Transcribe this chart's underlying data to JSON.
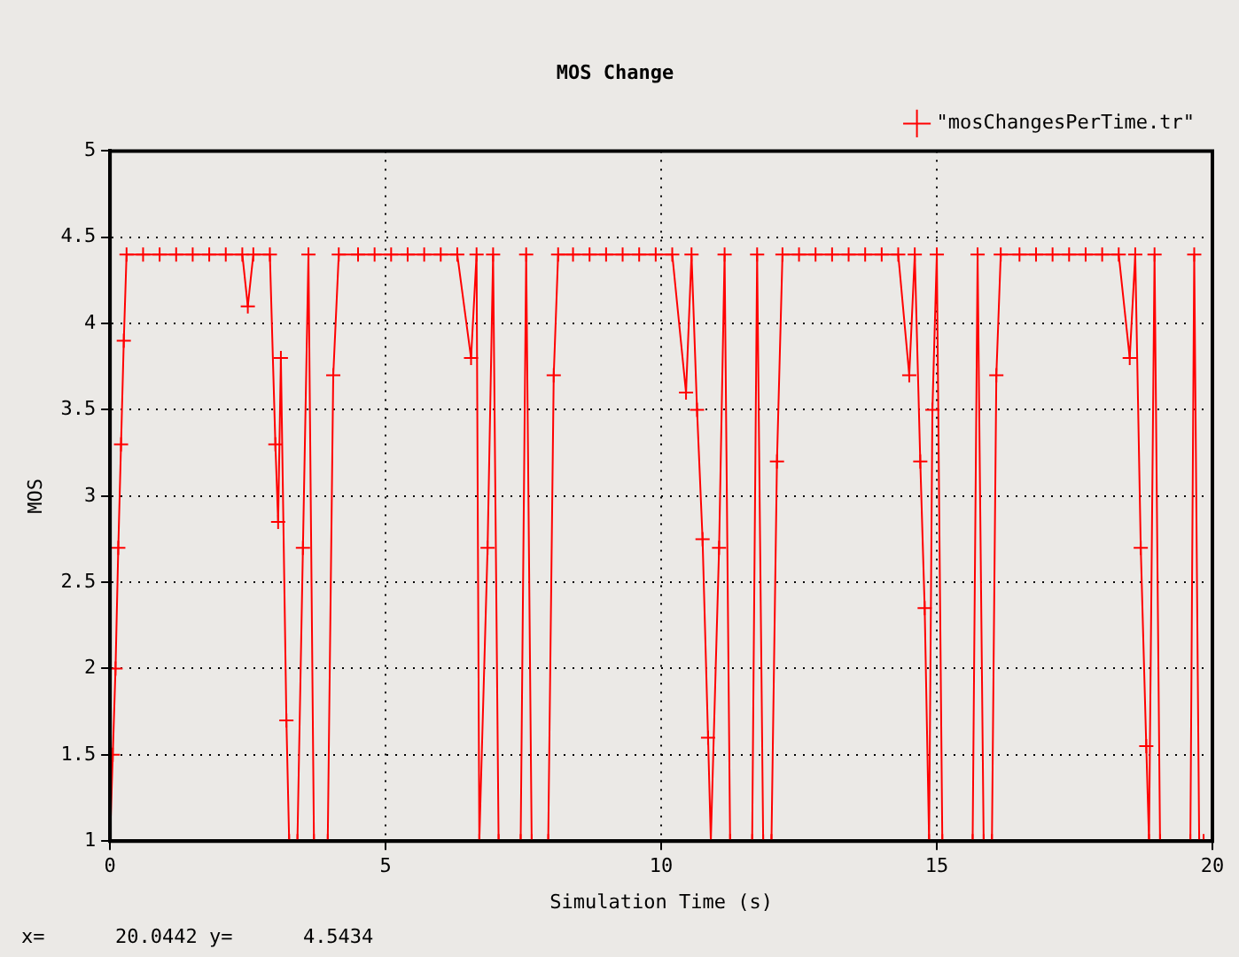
{
  "chart_data": {
    "type": "line",
    "title": "MOS Change",
    "xlabel": "Simulation Time (s)",
    "ylabel": "MOS",
    "x": [
      0,
      0.05,
      0.1,
      0.15,
      0.2,
      0.25,
      0.3,
      0.6,
      0.9,
      1.2,
      1.5,
      1.8,
      2.1,
      2.4,
      2.5,
      2.6,
      2.9,
      3.0,
      3.05,
      3.1,
      3.2,
      3.25,
      3.4,
      3.5,
      3.6,
      3.7,
      3.95,
      4.05,
      4.15,
      4.5,
      4.8,
      5.1,
      5.4,
      5.7,
      6.0,
      6.3,
      6.55,
      6.65,
      6.7,
      6.85,
      6.95,
      7.05,
      7.45,
      7.55,
      7.65,
      7.95,
      8.05,
      8.13,
      8.4,
      8.7,
      9.0,
      9.3,
      9.6,
      9.9,
      10.2,
      10.45,
      10.55,
      10.65,
      10.75,
      10.85,
      10.9,
      11.05,
      11.15,
      11.25,
      11.65,
      11.74,
      11.85,
      12.0,
      12.1,
      12.2,
      12.5,
      12.8,
      13.1,
      13.4,
      13.7,
      14.0,
      14.3,
      14.5,
      14.6,
      14.7,
      14.78,
      14.86,
      14.92,
      15.0,
      15.1,
      15.65,
      15.74,
      15.85,
      16.0,
      16.08,
      16.16,
      16.5,
      16.8,
      17.1,
      17.4,
      17.7,
      18.0,
      18.3,
      18.5,
      18.6,
      18.7,
      18.8,
      18.85,
      18.95,
      19.05,
      19.6,
      19.67,
      19.76,
      19.84
    ],
    "series": [
      {
        "name": "\"mosChangesPerTime.tr\"",
        "color": "#ff0000",
        "values": [
          1,
          1.5,
          2,
          2.7,
          3.3,
          3.9,
          4.4,
          4.4,
          4.4,
          4.4,
          4.4,
          4.4,
          4.4,
          4.4,
          4.1,
          4.4,
          4.4,
          3.3,
          2.85,
          3.8,
          1.7,
          1,
          1,
          2.7,
          4.4,
          1,
          1,
          3.7,
          4.4,
          4.4,
          4.4,
          4.4,
          4.4,
          4.4,
          4.4,
          4.4,
          3.8,
          4.4,
          1,
          2.7,
          4.4,
          1,
          1,
          4.4,
          1,
          1,
          3.7,
          4.4,
          4.4,
          4.4,
          4.4,
          4.4,
          4.4,
          4.4,
          4.4,
          3.6,
          4.4,
          3.5,
          2.75,
          1.6,
          1,
          2.7,
          4.4,
          1,
          1,
          4.4,
          1,
          1,
          3.2,
          4.4,
          4.4,
          4.4,
          4.4,
          4.4,
          4.4,
          4.4,
          4.4,
          3.7,
          4.4,
          3.2,
          2.35,
          1,
          3.5,
          4.4,
          1,
          1,
          4.4,
          1,
          1,
          3.7,
          4.4,
          4.4,
          4.4,
          4.4,
          4.4,
          4.4,
          4.4,
          4.4,
          3.8,
          4.4,
          2.7,
          1.55,
          1,
          4.4,
          1,
          1,
          4.4,
          1,
          1
        ]
      }
    ],
    "xlim": [
      0,
      20
    ],
    "xticks": [
      0,
      5,
      10,
      15,
      20
    ],
    "ylim": [
      1,
      5
    ],
    "yticks": [
      1,
      1.5,
      2,
      2.5,
      3,
      3.5,
      4,
      4.5,
      5
    ],
    "grid": true,
    "legend": "top right",
    "marker": "cross",
    "line_style": "solid",
    "annotations": [
      "x=      20.0442 y=      4.5434"
    ]
  }
}
